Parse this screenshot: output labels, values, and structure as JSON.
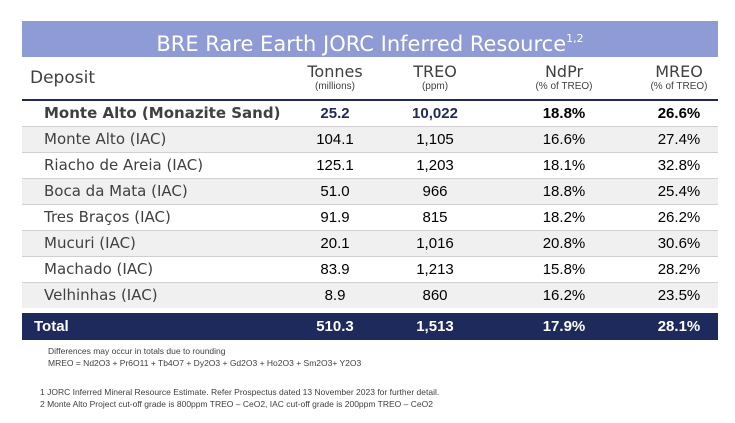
{
  "title": {
    "text": "BRE Rare Earth JORC Inferred Resource",
    "superscript": "1,2"
  },
  "headers": {
    "deposit": "Deposit",
    "tonnes": {
      "main": "Tonnes",
      "sub": "(millions)"
    },
    "treo": {
      "main": "TREO",
      "sub": "(ppm)"
    },
    "ndpr": {
      "main": "NdPr",
      "sub": "(% of TREO)"
    },
    "mreo": {
      "main": "MREO",
      "sub": "(% of TREO)"
    }
  },
  "rows": [
    {
      "deposit": "Monte Alto (Monazite Sand)",
      "tonnes": "25.2",
      "treo": "10,022",
      "ndpr": "18.8%",
      "mreo": "26.6%"
    },
    {
      "deposit": "Monte Alto (IAC)",
      "tonnes": "104.1",
      "treo": "1,105",
      "ndpr": "16.6%",
      "mreo": "27.4%"
    },
    {
      "deposit": "Riacho de Areia (IAC)",
      "tonnes": "125.1",
      "treo": "1,203",
      "ndpr": "18.1%",
      "mreo": "32.8%"
    },
    {
      "deposit": "Boca da Mata (IAC)",
      "tonnes": "51.0",
      "treo": "966",
      "ndpr": "18.8%",
      "mreo": "25.4%"
    },
    {
      "deposit": "Tres Braços (IAC)",
      "tonnes": "91.9",
      "treo": "815",
      "ndpr": "18.2%",
      "mreo": "26.2%"
    },
    {
      "deposit": "Mucuri (IAC)",
      "tonnes": "20.1",
      "treo": "1,016",
      "ndpr": "20.8%",
      "mreo": "30.6%"
    },
    {
      "deposit": "Machado (IAC)",
      "tonnes": "83.9",
      "treo": "1,213",
      "ndpr": "15.8%",
      "mreo": "28.2%"
    },
    {
      "deposit": "Velhinhas (IAC)",
      "tonnes": "8.9",
      "treo": "860",
      "ndpr": "16.2%",
      "mreo": "23.5%"
    }
  ],
  "total": {
    "deposit": "Total",
    "tonnes": "510.3",
    "treo": "1,513",
    "ndpr": "17.9%",
    "mreo": "28.1%"
  },
  "notes": {
    "rounding": "Differences may occur in totals due to rounding",
    "mreo_formula": "MREO = Nd2O3 + Pr6O11 + Tb4O7 + Dy2O3 + Gd2O3 + Ho2O3 + Sm2O3+ Y2O3",
    "footnote1": "1 JORC Inferred Mineral Resource Estimate. Refer Prospectus dated 13 November 2023 for further detail.",
    "footnote2": "2 Monte Alto Project cut-off grade is 800ppm TREO – CeO2, IAC cut-off grade is 200ppm TREO – CeO2"
  },
  "colors": {
    "title_bg": "#8e9bd4",
    "navy": "#1f2a5c",
    "row_alt": "#f0f0f0"
  }
}
